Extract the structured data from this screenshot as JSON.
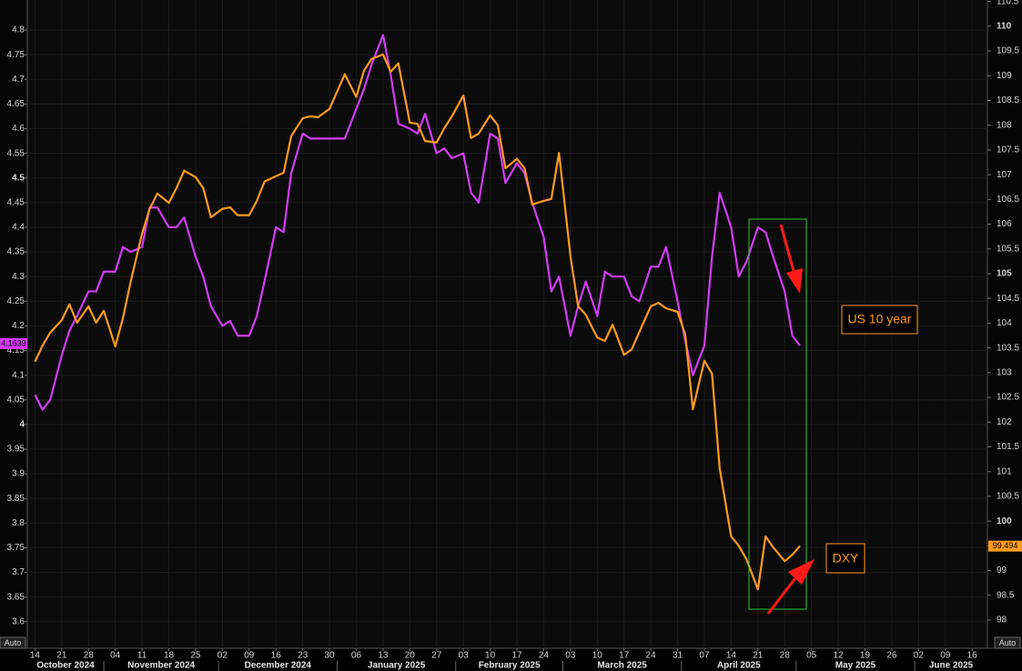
{
  "chart_data": {
    "type": "line",
    "x": [
      "2024-10-14",
      "2024-10-16",
      "2024-10-18",
      "2024-10-21",
      "2024-10-23",
      "2024-10-25",
      "2024-10-28",
      "2024-10-30",
      "2024-11-01",
      "2024-11-04",
      "2024-11-06",
      "2024-11-08",
      "2024-11-11",
      "2024-11-13",
      "2024-11-15",
      "2024-11-18",
      "2024-11-20",
      "2024-11-22",
      "2024-11-25",
      "2024-11-27",
      "2024-11-29",
      "2024-12-02",
      "2024-12-04",
      "2024-12-06",
      "2024-12-09",
      "2024-12-11",
      "2024-12-13",
      "2024-12-16",
      "2024-12-18",
      "2024-12-20",
      "2024-12-23",
      "2024-12-25",
      "2024-12-27",
      "2024-12-30",
      "2025-01-01",
      "2025-01-03",
      "2025-01-06",
      "2025-01-08",
      "2025-01-10",
      "2025-01-13",
      "2025-01-15",
      "2025-01-17",
      "2025-01-20",
      "2025-01-22",
      "2025-01-24",
      "2025-01-27",
      "2025-01-29",
      "2025-01-31",
      "2025-02-03",
      "2025-02-05",
      "2025-02-07",
      "2025-02-10",
      "2025-02-12",
      "2025-02-14",
      "2025-02-17",
      "2025-02-19",
      "2025-02-21",
      "2025-02-24",
      "2025-02-26",
      "2025-02-28",
      "2025-03-03",
      "2025-03-05",
      "2025-03-07",
      "2025-03-10",
      "2025-03-12",
      "2025-03-14",
      "2025-03-17",
      "2025-03-19",
      "2025-03-21",
      "2025-03-24",
      "2025-03-26",
      "2025-03-28",
      "2025-03-31",
      "2025-04-02",
      "2025-04-04",
      "2025-04-07",
      "2025-04-09",
      "2025-04-11",
      "2025-04-14",
      "2025-04-16",
      "2025-04-18",
      "2025-04-21",
      "2025-04-23",
      "2025-04-25",
      "2025-04-28",
      "2025-04-30",
      "2025-05-02"
    ],
    "series": [
      {
        "color": "#d23cf5",
        "axis": "y",
        "last_value": 4.1639,
        "values": [
          4.06,
          4.03,
          4.05,
          4.14,
          4.19,
          4.22,
          4.27,
          4.27,
          4.31,
          4.31,
          4.36,
          4.35,
          4.36,
          4.44,
          4.44,
          4.4,
          4.4,
          4.42,
          4.34,
          4.3,
          4.24,
          4.2,
          4.21,
          4.18,
          4.18,
          4.22,
          4.29,
          4.4,
          4.39,
          4.51,
          4.59,
          4.58,
          4.58,
          4.58,
          4.58,
          4.58,
          4.64,
          4.68,
          4.73,
          4.79,
          4.71,
          4.61,
          4.6,
          4.59,
          4.63,
          4.55,
          4.56,
          4.54,
          4.55,
          4.47,
          4.45,
          4.59,
          4.58,
          4.49,
          4.53,
          4.51,
          4.45,
          4.38,
          4.27,
          4.3,
          4.18,
          4.24,
          4.29,
          4.22,
          4.31,
          4.3,
          4.3,
          4.26,
          4.25,
          4.32,
          4.32,
          4.36,
          4.25,
          4.17,
          4.1,
          4.16,
          4.34,
          4.47,
          4.4,
          4.3,
          4.33,
          4.4,
          4.39,
          4.34,
          4.27,
          4.18,
          4.16
        ]
      },
      {
        "color": "#ff9b1c",
        "axis": "y2",
        "last_value": 99.494,
        "values": [
          103.22,
          103.55,
          103.81,
          104.06,
          104.38,
          104.01,
          104.34,
          104.01,
          104.25,
          103.53,
          104.1,
          104.83,
          105.81,
          106.31,
          106.62,
          106.43,
          106.73,
          107.08,
          106.95,
          106.73,
          106.14,
          106.31,
          106.34,
          106.18,
          106.18,
          106.47,
          106.86,
          106.97,
          107.04,
          107.78,
          108.14,
          108.18,
          108.16,
          108.33,
          108.68,
          109.03,
          108.57,
          109.1,
          109.34,
          109.43,
          109.08,
          109.25,
          108.05,
          108.03,
          107.68,
          107.65,
          107.94,
          108.18,
          108.6,
          107.74,
          107.83,
          108.2,
          108.0,
          107.13,
          107.32,
          107.13,
          106.4,
          106.47,
          106.51,
          107.44,
          105.35,
          104.34,
          104.17,
          103.71,
          103.64,
          103.97,
          103.36,
          103.47,
          103.82,
          104.34,
          104.41,
          104.3,
          104.23,
          103.77,
          102.26,
          103.24,
          102.98,
          101.07,
          99.69,
          99.5,
          99.23,
          98.62,
          99.69,
          99.47,
          99.19,
          99.32,
          99.5
        ]
      }
    ],
    "xlim": [
      "2024-10-12",
      "2025-06-20"
    ],
    "xticks": [
      {
        "value": "2024-10-14",
        "label": "14"
      },
      {
        "value": "2024-10-21",
        "label": "21"
      },
      {
        "value": "2024-10-28",
        "label": "28"
      },
      {
        "value": "2024-11-04",
        "label": "04"
      },
      {
        "value": "2024-11-11",
        "label": "11"
      },
      {
        "value": "2024-11-18",
        "label": "18"
      },
      {
        "value": "2024-11-25",
        "label": "25"
      },
      {
        "value": "2024-12-02",
        "label": "02"
      },
      {
        "value": "2024-12-09",
        "label": "09"
      },
      {
        "value": "2024-12-16",
        "label": "16"
      },
      {
        "value": "2024-12-23",
        "label": "23"
      },
      {
        "value": "2024-12-30",
        "label": "30"
      },
      {
        "value": "2025-01-06",
        "label": "06"
      },
      {
        "value": "2025-01-13",
        "label": "13"
      },
      {
        "value": "2025-01-20",
        "label": "20"
      },
      {
        "value": "2025-01-27",
        "label": "27"
      },
      {
        "value": "2025-02-03",
        "label": "03"
      },
      {
        "value": "2025-02-10",
        "label": "10"
      },
      {
        "value": "2025-02-17",
        "label": "17"
      },
      {
        "value": "2025-02-24",
        "label": "24"
      },
      {
        "value": "2025-03-03",
        "label": "03"
      },
      {
        "value": "2025-03-10",
        "label": "10"
      },
      {
        "value": "2025-03-17",
        "label": "17"
      },
      {
        "value": "2025-03-24",
        "label": "24"
      },
      {
        "value": "2025-03-31",
        "label": "31"
      },
      {
        "value": "2025-04-07",
        "label": "07"
      },
      {
        "value": "2025-04-14",
        "label": "14"
      },
      {
        "value": "2025-04-21",
        "label": "21"
      },
      {
        "value": "2025-04-28",
        "label": "28"
      },
      {
        "value": "2025-05-05",
        "label": "05"
      },
      {
        "value": "2025-05-12",
        "label": "12"
      },
      {
        "value": "2025-05-19",
        "label": "19"
      },
      {
        "value": "2025-05-26",
        "label": "26"
      },
      {
        "value": "2025-06-02",
        "label": "02"
      },
      {
        "value": "2025-06-09",
        "label": "09"
      },
      {
        "value": "2025-06-16",
        "label": "16"
      }
    ],
    "months": [
      {
        "value": "2024-10",
        "label": "October 2024"
      },
      {
        "value": "2024-11",
        "label": "November 2024"
      },
      {
        "value": "2024-12",
        "label": "December 2024"
      },
      {
        "value": "2025-01",
        "label": "January 2025"
      },
      {
        "value": "2025-02",
        "label": "February 2025"
      },
      {
        "value": "2025-03",
        "label": "March 2025"
      },
      {
        "value": "2025-04",
        "label": "April 2025"
      },
      {
        "value": "2025-05",
        "label": "May 2025"
      },
      {
        "value": "2025-06",
        "label": "June 2025"
      }
    ],
    "ylim": [
      3.546,
      4.861
    ],
    "yticks": [
      3.6,
      3.65,
      3.7,
      3.75,
      3.8,
      3.85,
      3.9,
      3.95,
      4,
      4.05,
      4.1,
      4.15,
      4.2,
      4.25,
      4.3,
      4.35,
      4.4,
      4.45,
      4.5,
      4.55,
      4.6,
      4.65,
      4.7,
      4.75,
      4.8
    ],
    "y2lim": [
      97.43,
      110.53
    ],
    "y2ticks": [
      98,
      98.5,
      99,
      99.5,
      100,
      100.5,
      101,
      101.5,
      102,
      102.5,
      103,
      103.5,
      104,
      104.5,
      105,
      105.5,
      106,
      106.5,
      107,
      107.5,
      108,
      108.5,
      109,
      109.5,
      110,
      110.5
    ],
    "grid": true,
    "annotations": [
      "US 10 year",
      "DXY"
    ],
    "left_axis_button": "Auto",
    "right_axis_button": "Auto"
  }
}
